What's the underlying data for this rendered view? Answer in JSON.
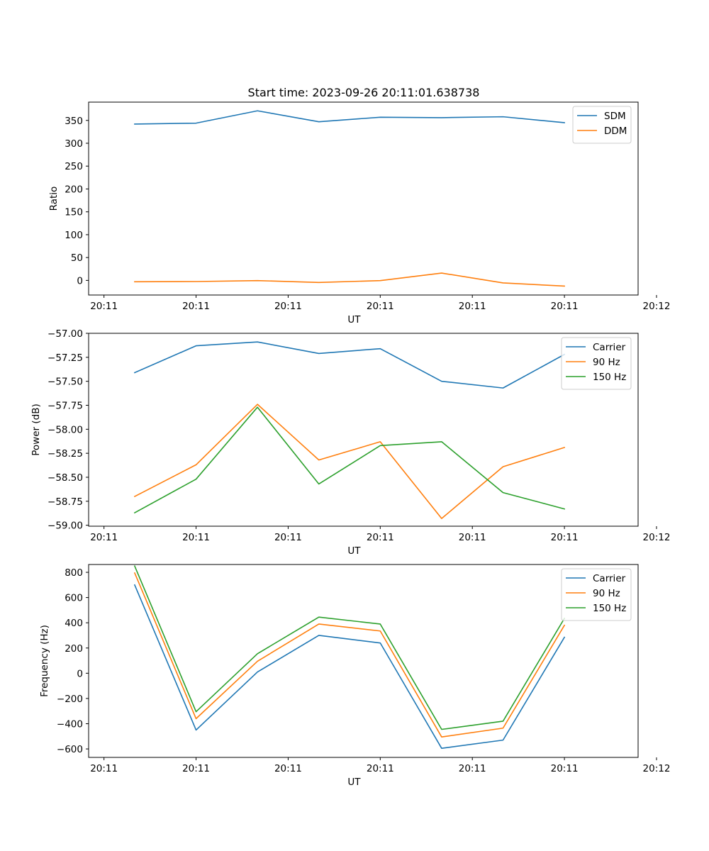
{
  "chart_data": [
    {
      "type": "line",
      "title": "Start time: 2023-09-26 20:11:01.638738",
      "xlabel": "UT",
      "ylabel": "Ratio",
      "x": [
        1,
        2,
        3,
        4,
        5,
        6,
        7,
        8
      ],
      "xlim": [
        0.25,
        9.2
      ],
      "xticks": [
        0.5,
        2.0,
        3.5,
        5.0,
        6.5,
        8.0,
        9.5
      ],
      "xticklabels": [
        "20:11",
        "20:11",
        "20:11",
        "20:11",
        "20:11",
        "20:11",
        "20:12"
      ],
      "ylim": [
        -32,
        390
      ],
      "yticks": [
        0,
        50,
        100,
        150,
        200,
        250,
        300,
        350
      ],
      "yticklabels": [
        "0",
        "50",
        "100",
        "150",
        "200",
        "250",
        "300",
        "350"
      ],
      "legend": "top-right",
      "grid": false,
      "series": [
        {
          "name": "SDM",
          "color": "#1f77b4",
          "values": [
            342,
            344,
            371,
            347,
            357,
            356,
            358,
            345
          ]
        },
        {
          "name": "DDM",
          "color": "#ff7f0e",
          "values": [
            -3,
            -2.5,
            -0.5,
            -4.5,
            -0.5,
            16,
            -5.5,
            -12.5
          ]
        }
      ]
    },
    {
      "type": "line",
      "title": "",
      "xlabel": "UT",
      "ylabel": "Power (dB)",
      "x": [
        1,
        2,
        3,
        4,
        5,
        6,
        7,
        8
      ],
      "xlim": [
        0.25,
        9.2
      ],
      "xticks": [
        0.5,
        2.0,
        3.5,
        5.0,
        6.5,
        8.0,
        9.5
      ],
      "xticklabels": [
        "20:11",
        "20:11",
        "20:11",
        "20:11",
        "20:11",
        "20:11",
        "20:12"
      ],
      "ylim": [
        -59.01,
        -57.0
      ],
      "yticks": [
        -59.0,
        -58.75,
        -58.5,
        -58.25,
        -58.0,
        -57.75,
        -57.5,
        -57.25,
        -57.0
      ],
      "yticklabels": [
        "−59.00",
        "−58.75",
        "−58.50",
        "−58.25",
        "−58.00",
        "−57.75",
        "−57.50",
        "−57.25",
        "−57.00"
      ],
      "legend": "top-right",
      "grid": false,
      "series": [
        {
          "name": "Carrier",
          "color": "#1f77b4",
          "values": [
            -57.41,
            -57.13,
            -57.09,
            -57.21,
            -57.16,
            -57.5,
            -57.57,
            -57.22
          ]
        },
        {
          "name": "90 Hz",
          "color": "#ff7f0e",
          "values": [
            -58.7,
            -58.37,
            -57.74,
            -58.32,
            -58.13,
            -58.93,
            -58.39,
            -58.19
          ]
        },
        {
          "name": "150 Hz",
          "color": "#2ca02c",
          "values": [
            -58.87,
            -58.52,
            -57.77,
            -58.57,
            -58.17,
            -58.13,
            -58.66,
            -58.83
          ]
        }
      ]
    },
    {
      "type": "line",
      "title": "",
      "xlabel": "UT",
      "ylabel": "Frequency (Hz)",
      "x": [
        1,
        2,
        3,
        4,
        5,
        6,
        7,
        8
      ],
      "xlim": [
        0.25,
        9.2
      ],
      "xticks": [
        0.5,
        2.0,
        3.5,
        5.0,
        6.5,
        8.0,
        9.5
      ],
      "xticklabels": [
        "20:11",
        "20:11",
        "20:11",
        "20:11",
        "20:11",
        "20:11",
        "20:12"
      ],
      "ylim": [
        -667,
        862
      ],
      "yticks": [
        -600,
        -400,
        -200,
        0,
        200,
        400,
        600,
        800
      ],
      "yticklabels": [
        "−600",
        "−400",
        "−200",
        "0",
        "200",
        "400",
        "600",
        "800"
      ],
      "legend": "top-right",
      "grid": false,
      "series": [
        {
          "name": "Carrier",
          "color": "#1f77b4",
          "values": [
            700,
            -450,
            10,
            300,
            240,
            -595,
            -530,
            285
          ]
        },
        {
          "name": "90 Hz",
          "color": "#ff7f0e",
          "values": [
            795,
            -360,
            95,
            390,
            335,
            -505,
            -435,
            380
          ]
        },
        {
          "name": "150 Hz",
          "color": "#2ca02c",
          "values": [
            850,
            -305,
            155,
            445,
            390,
            -445,
            -380,
            435
          ]
        }
      ]
    }
  ]
}
